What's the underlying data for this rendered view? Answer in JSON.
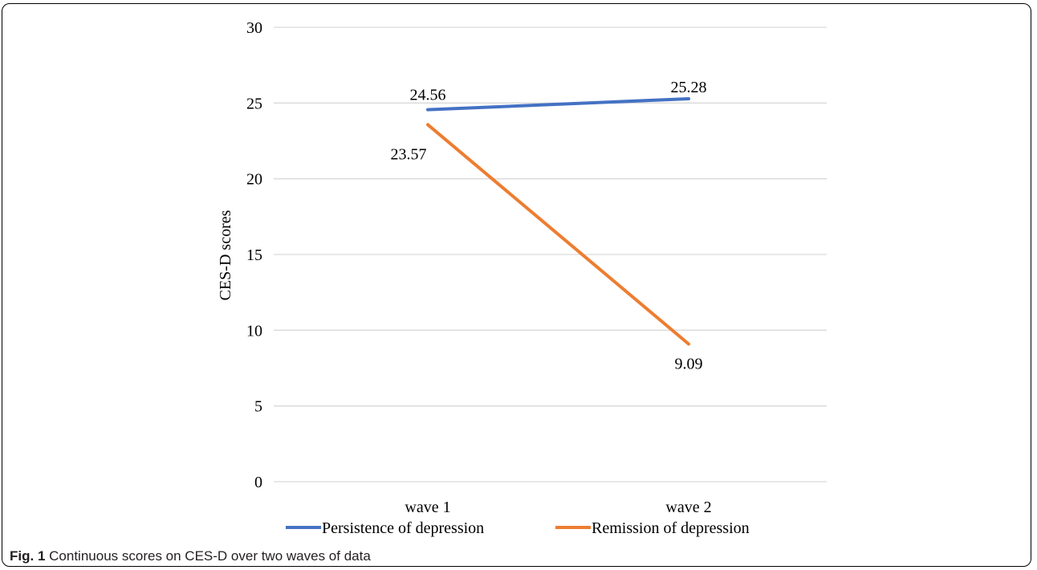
{
  "chart_data": {
    "type": "line",
    "title": "",
    "ylabel": "CES-D scores",
    "xlabel": "",
    "categories": [
      "wave 1",
      "wave 2"
    ],
    "ylim": [
      0,
      30
    ],
    "yticks": [
      0,
      5,
      10,
      15,
      20,
      25,
      30
    ],
    "grid": true,
    "legend_position": "bottom",
    "series": [
      {
        "name": "Persistence of depression",
        "values": [
          24.56,
          25.28
        ],
        "labels": [
          "24.56",
          "25.28"
        ],
        "color": "#4472C4"
      },
      {
        "name": "Remission of depression",
        "values": [
          23.57,
          9.09
        ],
        "labels": [
          "23.57",
          "9.09"
        ],
        "color": "#ED7D31"
      }
    ]
  },
  "caption": {
    "label": "Fig. 1",
    "text": "Continuous scores on CES-D over two waves of data"
  }
}
